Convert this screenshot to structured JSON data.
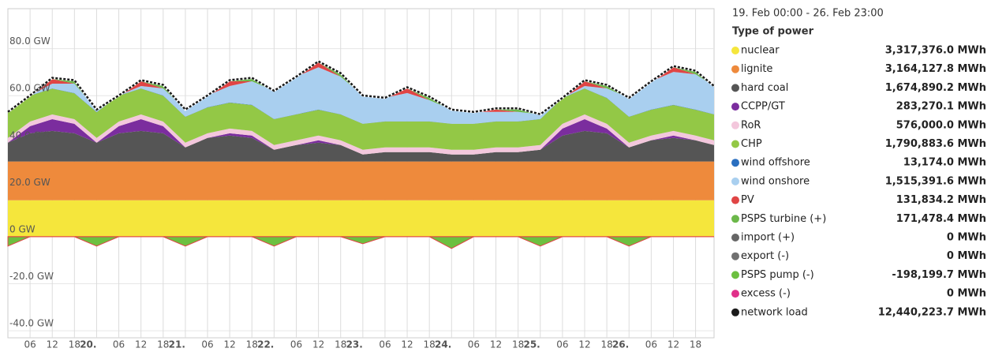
{
  "chart_data": {
    "type": "area",
    "stacked": true,
    "subtitle": "19. Feb 00:00 - 26. Feb 23:00",
    "legend_title": "Type of power",
    "grid": true,
    "xlim": [
      0,
      191
    ],
    "ylim": [
      -43,
      97
    ],
    "yticks": [
      {
        "value": -40,
        "label": "-40.0 GW"
      },
      {
        "value": -20,
        "label": "-20.0 GW"
      },
      {
        "value": 0,
        "label": "0 GW"
      },
      {
        "value": 20,
        "label": "20.0 GW"
      },
      {
        "value": 40,
        "label": "40.0 GW"
      },
      {
        "value": 60,
        "label": "60.0 GW"
      },
      {
        "value": 80,
        "label": "80.0 GW"
      }
    ],
    "xticks": [
      {
        "value": 6,
        "label": "06"
      },
      {
        "value": 12,
        "label": "12"
      },
      {
        "value": 18,
        "label": "18"
      },
      {
        "value": 24,
        "label": "20."
      },
      {
        "value": 30,
        "label": "06"
      },
      {
        "value": 36,
        "label": "12"
      },
      {
        "value": 42,
        "label": "18"
      },
      {
        "value": 48,
        "label": "21."
      },
      {
        "value": 54,
        "label": "06"
      },
      {
        "value": 60,
        "label": "12"
      },
      {
        "value": 66,
        "label": "18"
      },
      {
        "value": 72,
        "label": "22."
      },
      {
        "value": 78,
        "label": "06"
      },
      {
        "value": 84,
        "label": "12"
      },
      {
        "value": 90,
        "label": "18"
      },
      {
        "value": 96,
        "label": "23."
      },
      {
        "value": 102,
        "label": "06"
      },
      {
        "value": 108,
        "label": "12"
      },
      {
        "value": 114,
        "label": "18"
      },
      {
        "value": 120,
        "label": "24."
      },
      {
        "value": 126,
        "label": "06"
      },
      {
        "value": 132,
        "label": "12"
      },
      {
        "value": 138,
        "label": "18"
      },
      {
        "value": 144,
        "label": "25."
      },
      {
        "value": 150,
        "label": "06"
      },
      {
        "value": 156,
        "label": "12"
      },
      {
        "value": 162,
        "label": "18"
      },
      {
        "value": 168,
        "label": "26."
      },
      {
        "value": 174,
        "label": "06"
      },
      {
        "value": 180,
        "label": "12"
      },
      {
        "value": 186,
        "label": "18"
      }
    ],
    "x": [
      0,
      6,
      12,
      18,
      24,
      30,
      36,
      42,
      48,
      54,
      60,
      66,
      72,
      78,
      84,
      90,
      96,
      102,
      108,
      114,
      120,
      126,
      132,
      138,
      144,
      150,
      156,
      162,
      168,
      174,
      180,
      186,
      191
    ],
    "series": [
      {
        "name": "nuclear",
        "color": "#f5e63c",
        "total": "3,317,376.0 MWh",
        "values": [
          15.5,
          15.5,
          15.5,
          15.5,
          15.5,
          15.5,
          15.5,
          15.5,
          15.5,
          15.5,
          15.5,
          15.5,
          15.5,
          15.5,
          15.5,
          15.5,
          15.5,
          15.5,
          15.5,
          15.5,
          15.5,
          15.5,
          15.5,
          15.5,
          15.5,
          15.5,
          15.5,
          15.5,
          15.5,
          15.5,
          15.5,
          15.5,
          15.5
        ]
      },
      {
        "name": "lignite",
        "color": "#ee8a3c",
        "total": "3,164,127.8 MWh",
        "values": [
          16.5,
          16.5,
          16.5,
          16.5,
          16.5,
          16.5,
          16.5,
          16.5,
          16.5,
          16.5,
          16.5,
          16.5,
          16.5,
          16.5,
          16.5,
          16.5,
          16.5,
          16.5,
          16.5,
          16.5,
          16.5,
          16.5,
          16.5,
          16.5,
          16.5,
          16.5,
          16.5,
          16.5,
          16.5,
          16.5,
          16.5,
          16.5,
          16.5
        ]
      },
      {
        "name": "hard coal",
        "color": "#555555",
        "total": "1,674,890.2 MWh",
        "values": [
          8,
          12,
          13,
          12,
          8,
          12,
          13,
          12,
          6,
          10,
          11,
          10,
          5,
          7,
          8,
          7,
          3,
          4,
          4,
          4,
          3,
          3,
          4,
          4,
          5,
          11,
          13,
          12,
          6,
          9,
          10,
          9,
          7
        ]
      },
      {
        "name": "CCPP/GT",
        "color": "#7b2d9e",
        "total": "283,270.1 MWh",
        "values": [
          0,
          3,
          5,
          4,
          0,
          3,
          5,
          3,
          0,
          0,
          1,
          1,
          0,
          0,
          1,
          0,
          0,
          0,
          0,
          0,
          0,
          0,
          0,
          0,
          0,
          3,
          5,
          2,
          0,
          0,
          1,
          0,
          0
        ]
      },
      {
        "name": "RoR",
        "color": "#f3c7dc",
        "total": "576,000.0 MWh",
        "values": [
          2,
          2,
          2,
          2,
          2,
          2,
          2,
          2,
          2,
          2,
          2,
          2,
          2,
          2,
          2,
          2,
          2,
          2,
          2,
          2,
          2,
          2,
          2,
          2,
          2,
          2,
          2,
          2,
          2,
          2,
          2,
          2,
          2
        ]
      },
      {
        "name": "CHP",
        "color": "#93c846",
        "total": "1,790,883.6 MWh",
        "values": [
          11,
          11,
          11,
          11,
          11,
          11,
          11,
          11,
          11,
          11,
          11,
          11,
          11,
          11,
          11,
          11,
          11,
          11,
          11,
          11,
          11,
          11,
          11,
          11,
          11,
          11,
          11,
          11,
          11,
          11,
          11,
          11,
          11
        ]
      },
      {
        "name": "wind offshore",
        "color": "#2a6fc0",
        "total": "13,174.0 MWh",
        "values": [
          0.1,
          0.1,
          0.1,
          0.1,
          0.1,
          0.1,
          0.1,
          0.1,
          0.1,
          0.1,
          0.1,
          0.1,
          0.1,
          0.1,
          0.1,
          0.1,
          0.1,
          0.1,
          0.1,
          0.1,
          0.1,
          0.1,
          0.1,
          0.1,
          0.1,
          0.1,
          0.1,
          0.1,
          0.1,
          0.1,
          0.1,
          0.1,
          0.1
        ]
      },
      {
        "name": "wind onshore",
        "color": "#a9cfef",
        "total": "1,515,391.6 MWh",
        "values": [
          0,
          0,
          2,
          4,
          1,
          0,
          1,
          3,
          3,
          5,
          7,
          10,
          12,
          16,
          18,
          16,
          12,
          10,
          12,
          9,
          6,
          5,
          4,
          4,
          2,
          0,
          1,
          4,
          8,
          12,
          14,
          15,
          12
        ]
      },
      {
        "name": "PV",
        "color": "#e04545",
        "total": "131,834.2 MWh",
        "values": [
          0,
          0,
          2,
          0,
          0,
          0,
          2,
          0,
          0,
          0,
          2,
          0,
          0,
          0,
          2,
          0,
          0,
          0,
          2,
          0,
          0,
          0,
          1,
          0,
          0,
          0,
          2,
          0,
          0,
          0,
          2,
          0,
          0
        ]
      },
      {
        "name": "PSPS turbine (+)",
        "color": "#6cb84a",
        "total": "171,478.4 MWh",
        "values": [
          0,
          0,
          0.5,
          1.5,
          0,
          0,
          0.5,
          1.5,
          0,
          0,
          0.5,
          1.5,
          0,
          0,
          0.5,
          1.5,
          0,
          0,
          0.5,
          1.5,
          0,
          0,
          0.5,
          1.5,
          0,
          0,
          0.5,
          1.5,
          0,
          0,
          0.5,
          1.5,
          0
        ]
      },
      {
        "name": "import (+)",
        "color": "#666666",
        "total": "0 MWh",
        "values": [
          0,
          0,
          0,
          0,
          0,
          0,
          0,
          0,
          0,
          0,
          0,
          0,
          0,
          0,
          0,
          0,
          0,
          0,
          0,
          0,
          0,
          0,
          0,
          0,
          0,
          0,
          0,
          0,
          0,
          0,
          0,
          0,
          0
        ]
      },
      {
        "name": "export (-)",
        "color": "#707070",
        "total": "0 MWh",
        "values": [
          0,
          0,
          0,
          0,
          0,
          0,
          0,
          0,
          0,
          0,
          0,
          0,
          0,
          0,
          0,
          0,
          0,
          0,
          0,
          0,
          0,
          0,
          0,
          0,
          0,
          0,
          0,
          0,
          0,
          0,
          0,
          0,
          0
        ]
      },
      {
        "name": "PSPS pump (-)",
        "color": "#6cc040",
        "total": "-198,199.7 MWh",
        "values": [
          -4,
          0,
          0,
          0,
          -4,
          0,
          0,
          0,
          -4,
          0,
          0,
          0,
          -4,
          0,
          0,
          0,
          -3,
          0,
          0,
          0,
          -5,
          0,
          0,
          0,
          -4,
          0,
          0,
          0,
          -4,
          0,
          0,
          0,
          0
        ]
      },
      {
        "name": "excess (-)",
        "color": "#e0308a",
        "total": "0 MWh",
        "values": [
          0,
          0,
          0,
          0,
          0,
          0,
          0,
          0,
          0,
          0,
          0,
          0,
          0,
          0,
          0,
          0,
          0,
          0,
          0,
          0,
          0,
          0,
          0,
          0,
          0,
          0,
          0,
          0,
          0,
          0,
          0,
          0,
          0
        ]
      },
      {
        "name": "network load",
        "type": "line",
        "color": "#1a1a1a",
        "total": "12,440,223.7 MWh",
        "values": [
          53.1,
          60.1,
          67.6,
          66.6,
          54.1,
          60.1,
          66.6,
          64.6,
          54.1,
          60.1,
          66.6,
          67.6,
          62.1,
          68.1,
          74.6,
          69.6,
          60.1,
          59.1,
          63.6,
          59.6,
          54.1,
          53.1,
          54.6,
          54.6,
          52.1,
          59.1,
          66.6,
          64.6,
          59.1,
          66.1,
          72.6,
          70.6,
          64.1
        ]
      }
    ]
  }
}
